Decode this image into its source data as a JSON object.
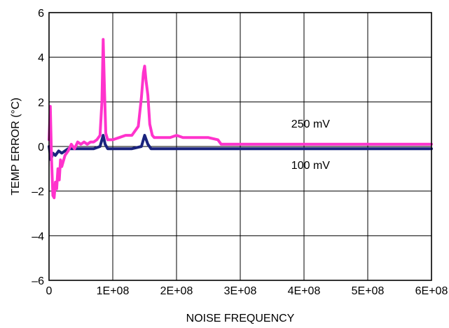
{
  "chart_data": {
    "type": "line",
    "xlabel": "NOISE FREQUENCY",
    "ylabel": "TEMP ERROR (°C)",
    "xlim": [
      0,
      600000000
    ],
    "ylim": [
      -6,
      6
    ],
    "x_ticks": [
      0,
      100000000,
      200000000,
      300000000,
      400000000,
      500000000,
      600000000
    ],
    "x_tick_labels": [
      "0",
      "1E+08",
      "2E+08",
      "3E+08",
      "4E+08",
      "5E+08",
      "6E+08"
    ],
    "y_ticks": [
      -6,
      -4,
      -2,
      0,
      2,
      4,
      6
    ],
    "y_tick_labels": [
      "–6",
      "–4",
      "–2",
      "0",
      "2",
      "4",
      "6"
    ],
    "grid": true,
    "annotations": [
      {
        "text": "250 mV",
        "x": 380000000,
        "y": 0.85
      },
      {
        "text": "100 mV",
        "x": 380000000,
        "y": -1.0
      }
    ],
    "series": [
      {
        "name": "250 mV",
        "color": "#ff33cc",
        "x": [
          0,
          2000000,
          4000000,
          6000000,
          8000000,
          10000000,
          12000000,
          14000000,
          16000000,
          18000000,
          20000000,
          25000000,
          30000000,
          35000000,
          40000000,
          45000000,
          50000000,
          55000000,
          60000000,
          65000000,
          70000000,
          75000000,
          80000000,
          83000000,
          85000000,
          87000000,
          89000000,
          92000000,
          100000000,
          110000000,
          120000000,
          130000000,
          140000000,
          145000000,
          148000000,
          150000000,
          152000000,
          155000000,
          158000000,
          162000000,
          165000000,
          170000000,
          180000000,
          190000000,
          200000000,
          210000000,
          230000000,
          250000000,
          265000000,
          270000000,
          300000000,
          350000000,
          400000000,
          450000000,
          500000000,
          550000000,
          600000000
        ],
        "values": [
          0.3,
          1.8,
          -0.6,
          -2.2,
          -2.3,
          -1.6,
          -1.9,
          -1.0,
          -1.5,
          -0.6,
          -0.9,
          -0.4,
          -0.2,
          0.1,
          -0.1,
          0.2,
          0.1,
          0.2,
          0.1,
          0.2,
          0.2,
          0.3,
          0.5,
          2.0,
          4.8,
          2.5,
          0.6,
          0.3,
          0.3,
          0.4,
          0.5,
          0.5,
          0.9,
          2.2,
          3.3,
          3.6,
          3.0,
          2.3,
          1.0,
          0.5,
          0.4,
          0.4,
          0.4,
          0.4,
          0.5,
          0.4,
          0.4,
          0.4,
          0.3,
          0.1,
          0.1,
          0.1,
          0.1,
          0.1,
          0.1,
          0.1,
          0.1
        ]
      },
      {
        "name": "100 mV",
        "color": "#1a237e",
        "x": [
          0,
          3000000,
          6000000,
          10000000,
          15000000,
          20000000,
          30000000,
          50000000,
          70000000,
          80000000,
          85000000,
          88000000,
          92000000,
          100000000,
          130000000,
          145000000,
          150000000,
          155000000,
          160000000,
          170000000,
          200000000,
          250000000,
          270000000,
          300000000,
          400000000,
          500000000,
          600000000
        ],
        "values": [
          0.0,
          -0.6,
          -0.3,
          -0.4,
          -0.2,
          -0.3,
          -0.1,
          -0.1,
          -0.1,
          0.0,
          0.5,
          0.1,
          -0.1,
          -0.1,
          -0.1,
          0.0,
          0.5,
          0.1,
          -0.1,
          -0.1,
          -0.1,
          -0.1,
          -0.1,
          -0.1,
          -0.1,
          -0.1,
          -0.1
        ]
      }
    ]
  }
}
